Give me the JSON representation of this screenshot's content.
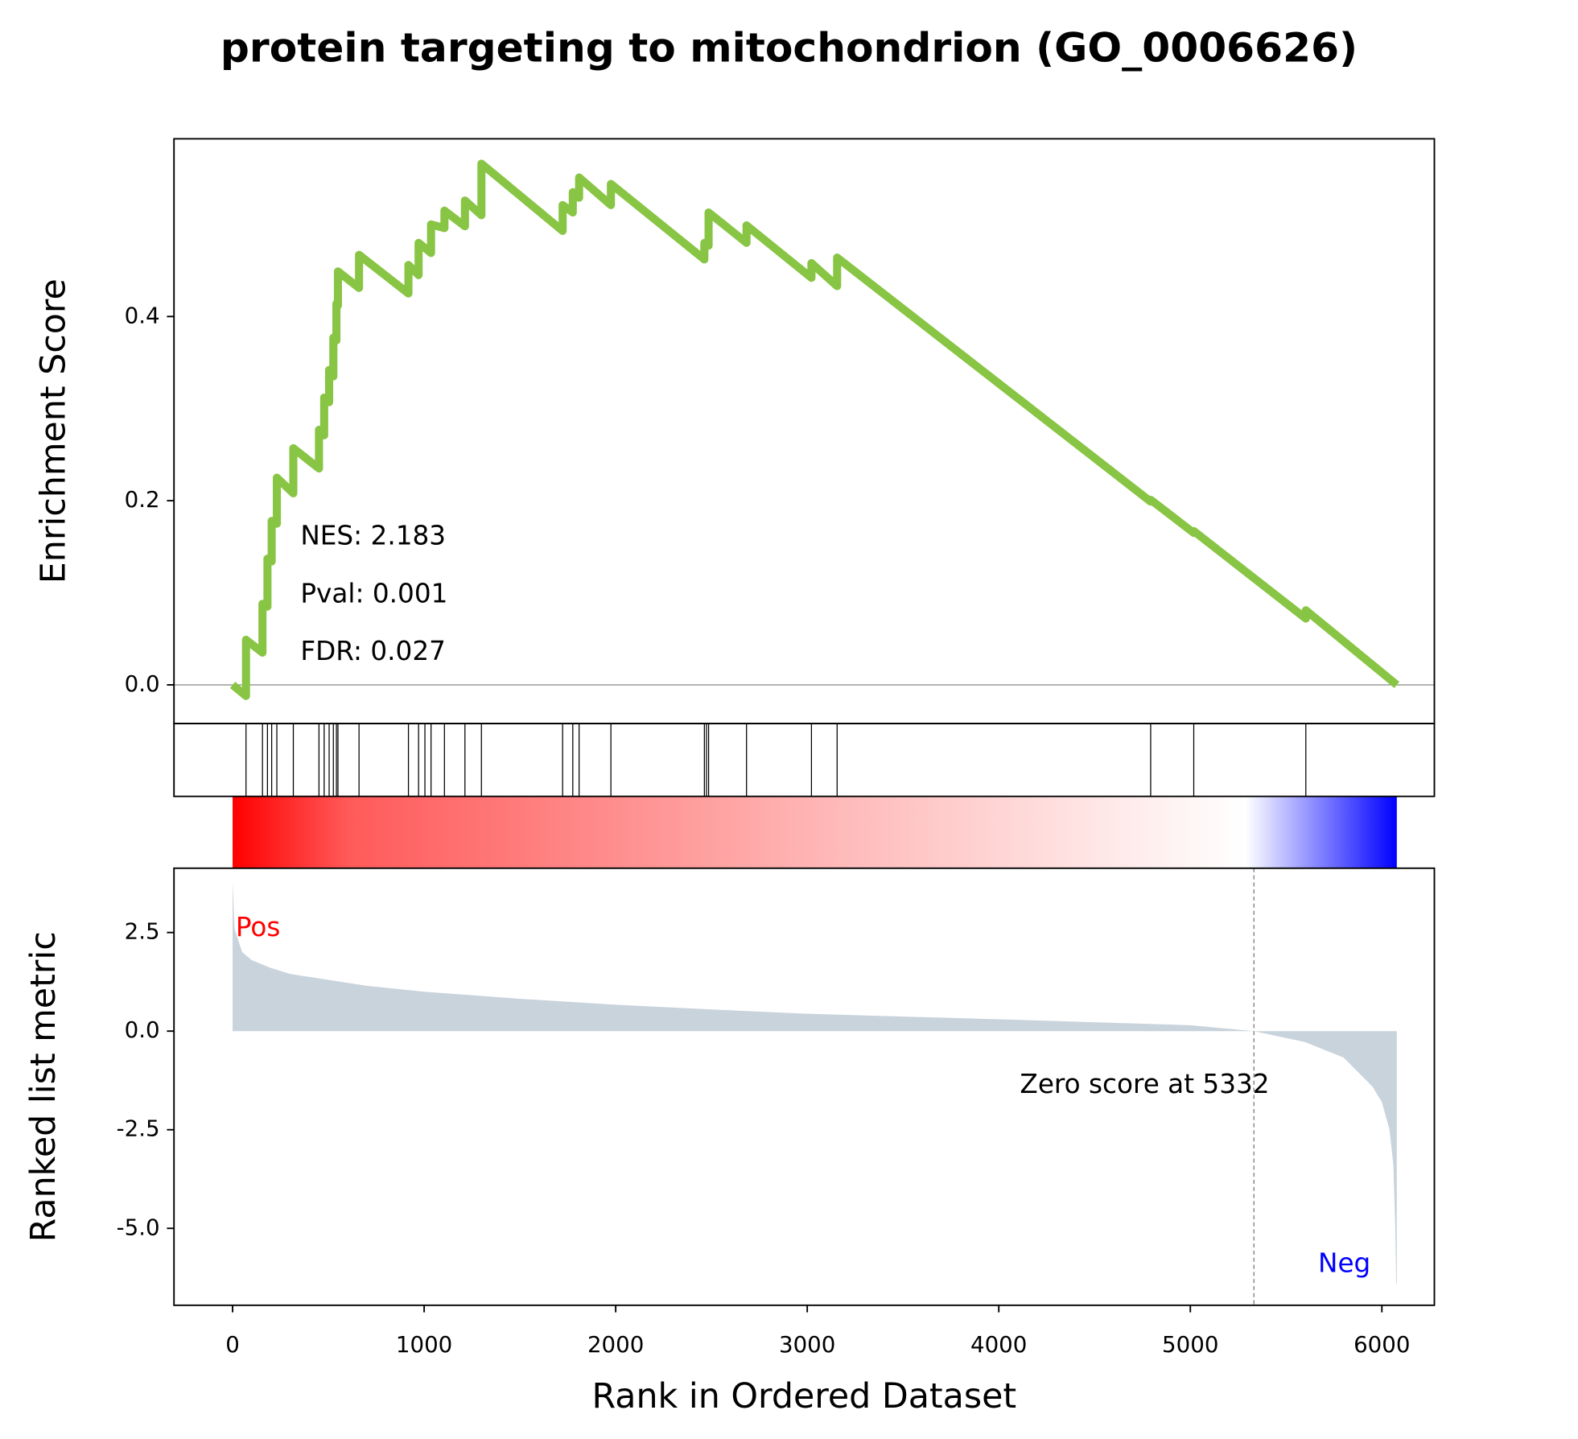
{
  "chart_data": [
    {
      "type": "line",
      "title": "protein targeting to mitochondrion (GO_0006626)",
      "ylabel": "Enrichment Score",
      "color": "#88c544",
      "x": [
        0,
        70,
        70,
        156,
        156,
        182,
        182,
        204,
        204,
        231,
        231,
        317,
        317,
        451,
        451,
        478,
        478,
        504,
        504,
        526,
        526,
        542,
        542,
        550,
        550,
        660,
        660,
        918,
        918,
        971,
        971,
        1036,
        1036,
        1106,
        1106,
        1213,
        1213,
        1299,
        1299,
        1723,
        1723,
        1776,
        1776,
        1809,
        1809,
        1975,
        1975,
        2463,
        2463,
        2485,
        2485,
        2683,
        2683,
        3022,
        3022,
        3156,
        3156,
        4793,
        4793,
        5018,
        5018,
        5603,
        5603,
        6078
      ],
      "values": [
        0,
        -0.012,
        0.049,
        0.035,
        0.088,
        0.085,
        0.137,
        0.134,
        0.178,
        0.175,
        0.225,
        0.208,
        0.257,
        0.235,
        0.277,
        0.271,
        0.312,
        0.307,
        0.342,
        0.335,
        0.377,
        0.374,
        0.414,
        0.412,
        0.449,
        0.431,
        0.467,
        0.425,
        0.456,
        0.445,
        0.48,
        0.469,
        0.5,
        0.496,
        0.515,
        0.498,
        0.526,
        0.51,
        0.566,
        0.493,
        0.521,
        0.513,
        0.535,
        0.529,
        0.551,
        0.521,
        0.544,
        0.462,
        0.48,
        0.477,
        0.513,
        0.48,
        0.499,
        0.442,
        0.458,
        0.433,
        0.464,
        0.199,
        0.201,
        0.165,
        0.167,
        0.072,
        0.081,
        0.0
      ],
      "hits": [
        70,
        156,
        182,
        204,
        231,
        317,
        451,
        478,
        504,
        526,
        542,
        550,
        660,
        918,
        971,
        1004,
        1036,
        1106,
        1213,
        1299,
        1723,
        1776,
        1809,
        1975,
        2463,
        2474,
        2485,
        2683,
        3022,
        3156,
        4793,
        5018,
        5603
      ],
      "xlim": [
        -306,
        6274
      ],
      "ylim": [
        -0.042,
        0.593
      ],
      "yticks": [
        {
          "value": 0,
          "label": "0.0"
        },
        0.2,
        0.4
      ],
      "annotations": [
        "NES: 2.183",
        "Pval: 0.001",
        "FDR: 0.027"
      ]
    },
    {
      "type": "area",
      "ylabel": "Ranked list metric",
      "xlabel": "Rank in Ordered Dataset",
      "color": "#c9d3dc",
      "x": [
        0,
        10,
        50,
        100,
        200,
        300,
        500,
        700,
        1000,
        1500,
        2000,
        2500,
        3000,
        4000,
        5000,
        5332,
        5600,
        5800,
        5950,
        6000,
        6040,
        6060,
        6070,
        6075,
        6078
      ],
      "values": [
        3.8,
        2.6,
        2.0,
        1.8,
        1.6,
        1.45,
        1.3,
        1.15,
        1.0,
        0.82,
        0.67,
        0.55,
        0.44,
        0.3,
        0.15,
        0,
        -0.28,
        -0.67,
        -1.4,
        -1.8,
        -2.5,
        -3.4,
        -5.0,
        -6.4,
        -6.4
      ],
      "xlim": [
        -306,
        6274
      ],
      "ylim": [
        -6.95,
        4.13
      ],
      "xticks": [
        0,
        1000,
        2000,
        3000,
        4000,
        5000,
        6000
      ],
      "yticks": [
        2.5,
        {
          "value": 0,
          "label": "0.0"
        },
        -2.5,
        {
          "value": -5,
          "label": "-5.0"
        }
      ],
      "zero_rank": 5332,
      "zero_label": "Zero score at 5332",
      "pos_label": "Pos",
      "pos_color": "#ff0000",
      "neg_label": "Neg",
      "neg_color": "#0000ff"
    }
  ]
}
